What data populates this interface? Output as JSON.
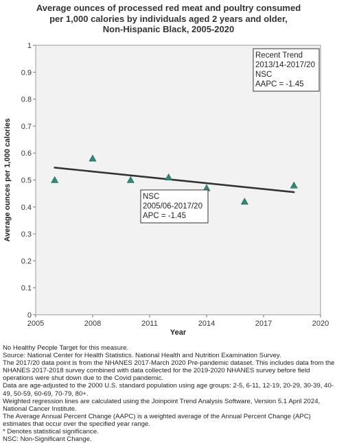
{
  "chart_data": {
    "type": "scatter",
    "title_lines": [
      "Average ounces of processed red meat and poultry consumed",
      "per 1,000 calories by individuals aged 2 years and older,",
      "Non-Hispanic Black,  2005-2020"
    ],
    "xlabel": "Year",
    "ylabel": "Average ounces per 1,000 calories",
    "xlim": [
      2005,
      2020
    ],
    "ylim": [
      0,
      1
    ],
    "xticks": [
      2005,
      2008,
      2011,
      2014,
      2017,
      2020
    ],
    "yticks": [
      0,
      0.1,
      0.2,
      0.3,
      0.4,
      0.5,
      0.6,
      0.7,
      0.8,
      0.9,
      1
    ],
    "ytick_labels": [
      "0",
      "0.1",
      "0.2",
      "0.3",
      "0.4",
      "0.5",
      "0.6",
      "0.7",
      "0.8",
      "0.9",
      "1"
    ],
    "grid": false,
    "points": [
      {
        "x": 2006,
        "y": 0.5
      },
      {
        "x": 2008,
        "y": 0.58
      },
      {
        "x": 2010,
        "y": 0.5
      },
      {
        "x": 2012,
        "y": 0.51
      },
      {
        "x": 2014,
        "y": 0.47
      },
      {
        "x": 2016,
        "y": 0.42
      },
      {
        "x": 2018.6,
        "y": 0.48
      }
    ],
    "trend_line": {
      "x": [
        2006,
        2018.6
      ],
      "y": [
        0.546,
        0.455
      ]
    },
    "annotations": [
      {
        "lines": [
          "Recent Trend",
          "2013/14-2017/20",
          "NSC",
          "AAPC = -1.45"
        ],
        "placement": "top-right"
      },
      {
        "lines": [
          "NSC",
          "2005/06-2017/20",
          "APC = -1.45"
        ],
        "placement": "middle"
      }
    ],
    "colors": {
      "marker": "#2e8b7a",
      "trend": "#333333",
      "plot_bg": "#f2f2f2",
      "axis": "#999999"
    }
  },
  "notes": [
    "No Healthy People Target for this measure.",
    "Source: National Center for Health Statistics. National Health and Nutrition Examination Survey.",
    "The 2017/20 data point is from the NHANES 2017-March 2020 Pre-pandemic dataset. This includes data from the NHANES 2017-2018 survey combined with data collected for the 2019-2020 NHANES survey before field operations were shut down due to the Covid pandemic.",
    "Data are age-adjusted to the 2000 U.S. standard population using age groups: 2-5, 6-11, 12-19, 20-29, 30-39, 40-49, 50-59, 60-69, 70-79, 80+.",
    "Weighted regression lines are calculated using the Joinpoint Trend Analysis Software, Version 5.1 April 2024, National Cancer Institute.",
    "The Average Annual Percent Change (AAPC) is a weighted average of the Annual Percent Change (APC) estimates that occur over the specified year range.",
    "* Denotes statistical significance.",
    "NSC: Non-Significant Change."
  ]
}
